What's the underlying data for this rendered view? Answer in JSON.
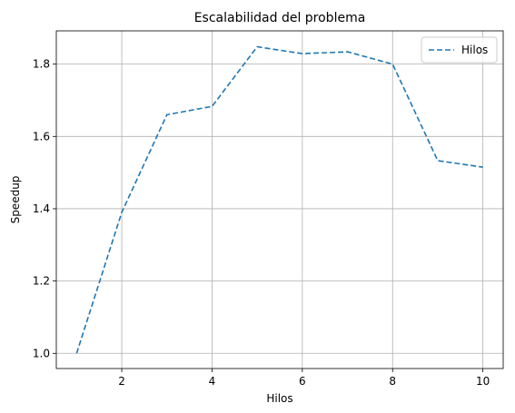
{
  "chart_data": {
    "type": "line",
    "title": "Escalabilidad del problema",
    "xlabel": "Hilos",
    "ylabel": "Speedup",
    "xlim": [
      0.55,
      10.45
    ],
    "ylim": [
      0.958,
      1.892
    ],
    "xticks": [
      2,
      4,
      6,
      8,
      10
    ],
    "yticks": [
      1.0,
      1.2,
      1.4,
      1.6,
      1.8
    ],
    "xtick_labels": [
      "2",
      "4",
      "6",
      "8",
      "10"
    ],
    "ytick_labels": [
      "1.0",
      "1.2",
      "1.4",
      "1.6",
      "1.8"
    ],
    "grid": true,
    "legend_position": "top-right",
    "series": [
      {
        "name": "Hilos",
        "color": "#1f77b4",
        "line_style": "dashed",
        "x": [
          1,
          2,
          3,
          4,
          5,
          6,
          7,
          8,
          9,
          10
        ],
        "y": [
          1.0,
          1.39,
          1.66,
          1.683,
          1.848,
          1.829,
          1.834,
          1.8,
          1.533,
          1.515
        ]
      }
    ]
  }
}
